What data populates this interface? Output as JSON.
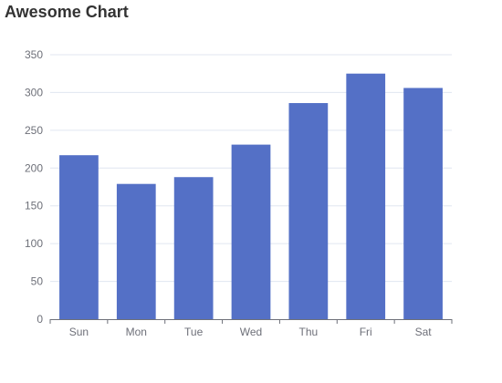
{
  "chart_data": {
    "type": "bar",
    "title": "Awesome Chart",
    "categories": [
      "Sun",
      "Mon",
      "Tue",
      "Wed",
      "Thu",
      "Fri",
      "Sat"
    ],
    "values": [
      217,
      179,
      188,
      231,
      286,
      325,
      306
    ],
    "ylim": [
      0,
      350
    ],
    "yticks": [
      0,
      50,
      100,
      150,
      200,
      250,
      300,
      350
    ],
    "xlabel": "",
    "ylabel": "",
    "grid": true,
    "legend": "none",
    "bar_color": "#5470c6",
    "grid_color": "#e0e6f1",
    "axis_color": "#6e7079"
  }
}
